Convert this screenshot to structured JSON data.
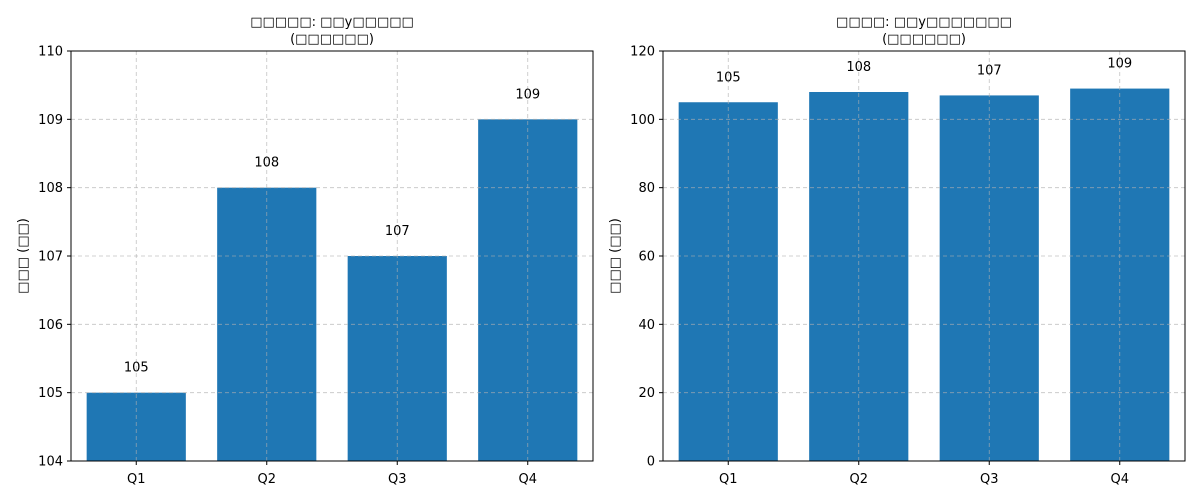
{
  "colors": {
    "bar": "#1f77b4",
    "grid": "#b0b0b0",
    "axis": "#000000",
    "text": "#000000",
    "background": "#ffffff"
  },
  "chart_data": [
    {
      "type": "bar",
      "title_line1": "□□□□□: □□y□□□□□",
      "title_line2": "(□□□□□□)",
      "xlabel": "",
      "ylabel": "□□□ (□□)",
      "categories": [
        "Q1",
        "Q2",
        "Q3",
        "Q4"
      ],
      "values": [
        105,
        108,
        107,
        109
      ],
      "data_labels": [
        "105",
        "108",
        "107",
        "109"
      ],
      "ylim": [
        104,
        110
      ],
      "yticks": [
        104,
        105,
        106,
        107,
        108,
        109,
        110
      ],
      "grid": true,
      "legend": "none"
    },
    {
      "type": "bar",
      "title_line1": "□□□□: □□y□□□□□□□",
      "title_line2": "(□□□□□□)",
      "xlabel": "",
      "ylabel": "□□□ (□□)",
      "categories": [
        "Q1",
        "Q2",
        "Q3",
        "Q4"
      ],
      "values": [
        105,
        108,
        107,
        109
      ],
      "data_labels": [
        "105",
        "108",
        "107",
        "109"
      ],
      "ylim": [
        0,
        120
      ],
      "yticks": [
        0,
        20,
        40,
        60,
        80,
        100,
        120
      ],
      "grid": true,
      "legend": "none"
    }
  ]
}
